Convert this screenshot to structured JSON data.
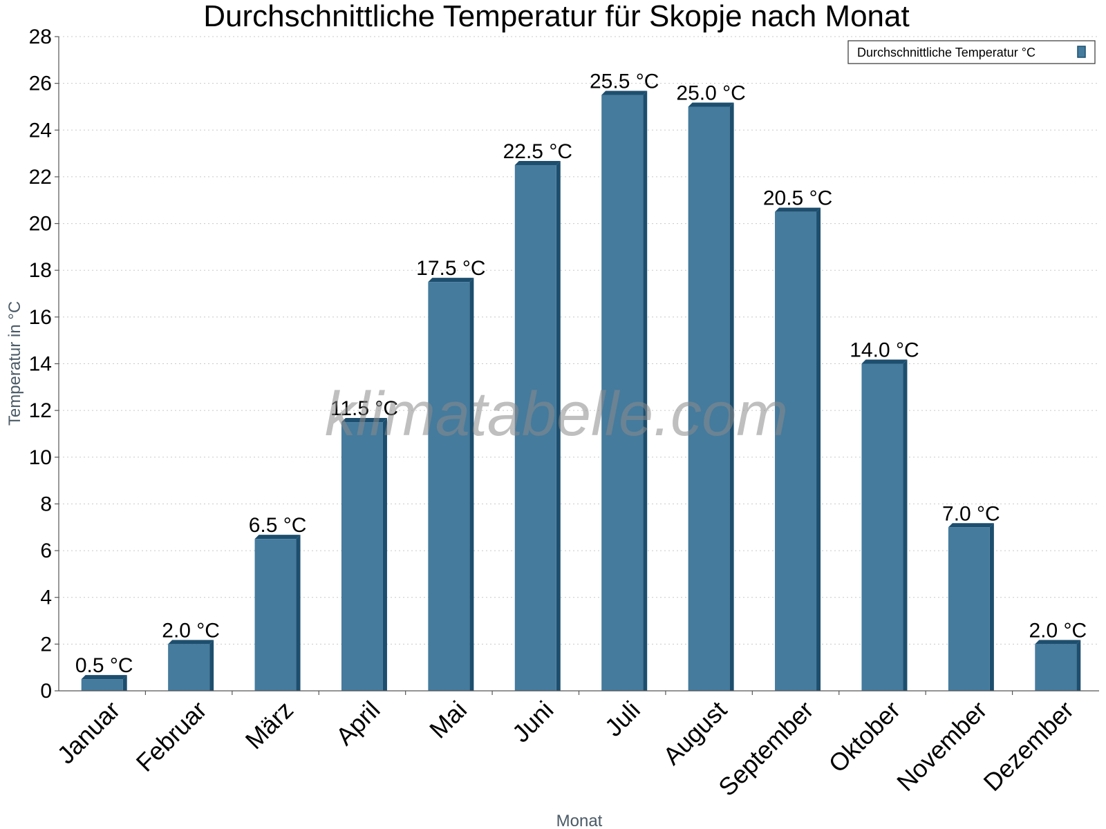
{
  "chart_data": {
    "type": "bar",
    "title": "Durchschnittliche Temperatur für Skopje nach Monat",
    "xlabel": "Monat",
    "ylabel": "Temperatur in °C",
    "categories": [
      "Januar",
      "Februar",
      "März",
      "April",
      "Mai",
      "Juni",
      "Juli",
      "August",
      "September",
      "Oktober",
      "November",
      "Dezember"
    ],
    "series": [
      {
        "name": "Durchschnittliche Temperatur °C",
        "values": [
          0.5,
          2.0,
          6.5,
          11.5,
          17.5,
          22.5,
          25.5,
          25.0,
          20.5,
          14.0,
          7.0,
          2.0
        ],
        "labels": [
          "0.5 °C",
          "2.0 °C",
          "6.5 °C",
          "11.5 °C",
          "17.5 °C",
          "22.5 °C",
          "25.5 °C",
          "25.0 °C",
          "20.5 °C",
          "14.0 °C",
          "7.0 °C",
          "2.0 °C"
        ]
      }
    ],
    "ylim": [
      0,
      28
    ],
    "yticks": [
      0,
      2,
      4,
      6,
      8,
      10,
      12,
      14,
      16,
      18,
      20,
      22,
      24,
      26,
      28
    ],
    "grid": true,
    "legend_position": "top-right",
    "colors": {
      "bar": "#457b9d",
      "bar_dark": "#1d4e6e"
    },
    "watermark": "klimatabelle.com"
  }
}
